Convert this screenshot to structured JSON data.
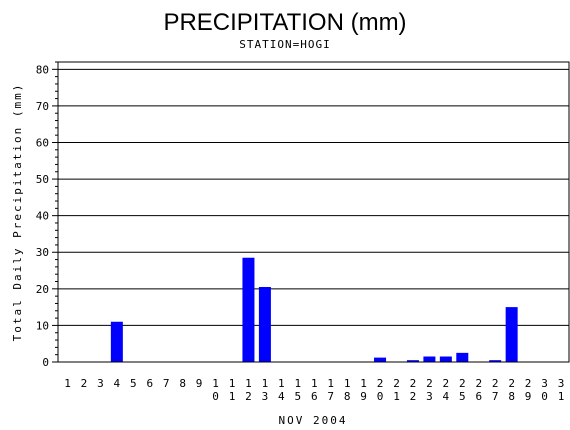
{
  "chart_data": {
    "type": "bar",
    "title": "PRECIPITATION (mm)",
    "subtitle": "STATION=HOGI",
    "xlabel": "NOV 2004",
    "ylabel": "Total Daily Precipitation (mm)",
    "ylim": [
      0,
      82
    ],
    "yticks": [
      0,
      10,
      20,
      30,
      40,
      50,
      60,
      70,
      80
    ],
    "grid": true,
    "categories": [
      "1",
      "2",
      "3",
      "4",
      "5",
      "6",
      "7",
      "8",
      "9",
      "10",
      "11",
      "12",
      "13",
      "14",
      "15",
      "16",
      "17",
      "18",
      "19",
      "20",
      "21",
      "22",
      "23",
      "24",
      "25",
      "26",
      "27",
      "28",
      "29",
      "30",
      "31"
    ],
    "values": [
      0,
      0,
      0,
      11,
      0,
      0,
      0,
      0,
      0,
      0,
      0,
      28.5,
      20.5,
      0,
      0,
      0,
      0,
      0,
      0,
      1.2,
      0,
      0.5,
      1.5,
      1.5,
      2.5,
      0,
      0.5,
      15,
      0,
      0,
      0
    ],
    "bar_color": "#0000ff"
  }
}
